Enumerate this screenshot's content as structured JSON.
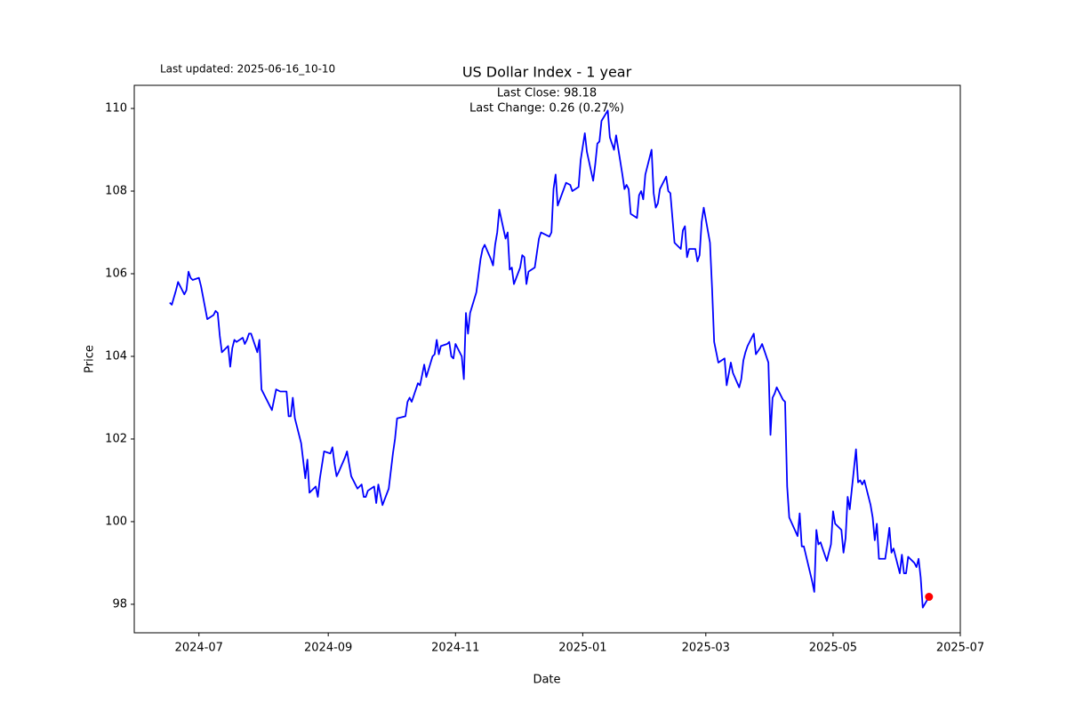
{
  "chart_data": {
    "type": "line",
    "title": "US Dollar Index - 1 year",
    "subtitle": "Last updated: 2025-06-16_10-10",
    "annotations": [
      "Last Close: 98.18",
      "Last Change: 0.26 (0.27%)"
    ],
    "xlabel": "Date",
    "ylabel": "Price",
    "xlim": [
      "2024-05-31",
      "2025-07-01"
    ],
    "xticks": [
      {
        "value": "2024-07-01",
        "label": "2024-07"
      },
      {
        "value": "2024-09-01",
        "label": "2024-09"
      },
      {
        "value": "2024-11-01",
        "label": "2024-11"
      },
      {
        "value": "2025-01-01",
        "label": "2025-01"
      },
      {
        "value": "2025-03-01",
        "label": "2025-03"
      },
      {
        "value": "2025-05-01",
        "label": "2025-05"
      },
      {
        "value": "2025-07-01",
        "label": "2025-07"
      }
    ],
    "ylim": [
      97.31,
      110.56
    ],
    "yticks": [
      98,
      100,
      102,
      104,
      106,
      108,
      110
    ],
    "grid": false,
    "series": [
      {
        "name": "Price",
        "color": "#0000ff",
        "x": [
          "2024-06-17",
          "2024-06-18",
          "2024-06-20",
          "2024-06-21",
          "2024-06-24",
          "2024-06-25",
          "2024-06-26",
          "2024-06-27",
          "2024-06-28",
          "2024-07-01",
          "2024-07-02",
          "2024-07-05",
          "2024-07-08",
          "2024-07-09",
          "2024-07-10",
          "2024-07-11",
          "2024-07-12",
          "2024-07-15",
          "2024-07-16",
          "2024-07-17",
          "2024-07-18",
          "2024-07-19",
          "2024-07-22",
          "2024-07-23",
          "2024-07-24",
          "2024-07-25",
          "2024-07-26",
          "2024-07-29",
          "2024-07-30",
          "2024-07-31",
          "2024-08-05",
          "2024-08-07",
          "2024-08-09",
          "2024-08-12",
          "2024-08-13",
          "2024-08-14",
          "2024-08-15",
          "2024-08-16",
          "2024-08-19",
          "2024-08-21",
          "2024-08-22",
          "2024-08-23",
          "2024-08-26",
          "2024-08-27",
          "2024-08-28",
          "2024-08-30",
          "2024-09-02",
          "2024-09-03",
          "2024-09-04",
          "2024-09-05",
          "2024-09-06",
          "2024-09-09",
          "2024-09-10",
          "2024-09-12",
          "2024-09-15",
          "2024-09-17",
          "2024-09-18",
          "2024-09-19",
          "2024-09-20",
          "2024-09-23",
          "2024-09-24",
          "2024-09-25",
          "2024-09-27",
          "2024-09-30",
          "2024-10-02",
          "2024-10-03",
          "2024-10-04",
          "2024-10-08",
          "2024-10-09",
          "2024-10-10",
          "2024-10-11",
          "2024-10-14",
          "2024-10-15",
          "2024-10-17",
          "2024-10-18",
          "2024-10-21",
          "2024-10-22",
          "2024-10-23",
          "2024-10-24",
          "2024-10-25",
          "2024-10-28",
          "2024-10-29",
          "2024-10-30",
          "2024-10-31",
          "2024-11-01",
          "2024-11-04",
          "2024-11-05",
          "2024-11-06",
          "2024-11-07",
          "2024-11-08",
          "2024-11-11",
          "2024-11-12",
          "2024-11-13",
          "2024-11-14",
          "2024-11-15",
          "2024-11-18",
          "2024-11-19",
          "2024-11-20",
          "2024-11-21",
          "2024-11-22",
          "2024-11-25",
          "2024-11-26",
          "2024-11-27",
          "2024-11-28",
          "2024-11-29",
          "2024-12-02",
          "2024-12-03",
          "2024-12-04",
          "2024-12-05",
          "2024-12-06",
          "2024-12-09",
          "2024-12-10",
          "2024-12-11",
          "2024-12-12",
          "2024-12-16",
          "2024-12-17",
          "2024-12-18",
          "2024-12-19",
          "2024-12-20",
          "2024-12-24",
          "2024-12-26",
          "2024-12-27",
          "2024-12-30",
          "2024-12-31",
          "2025-01-02",
          "2025-01-03",
          "2025-01-06",
          "2025-01-07",
          "2025-01-08",
          "2025-01-09",
          "2025-01-10",
          "2025-01-13",
          "2025-01-14",
          "2025-01-16",
          "2025-01-17",
          "2025-01-20",
          "2025-01-21",
          "2025-01-22",
          "2025-01-23",
          "2025-01-24",
          "2025-01-27",
          "2025-01-28",
          "2025-01-29",
          "2025-01-30",
          "2025-01-31",
          "2025-02-03",
          "2025-02-04",
          "2025-02-05",
          "2025-02-06",
          "2025-02-07",
          "2025-02-10",
          "2025-02-11",
          "2025-02-12",
          "2025-02-13",
          "2025-02-14",
          "2025-02-17",
          "2025-02-18",
          "2025-02-19",
          "2025-02-20",
          "2025-02-21",
          "2025-02-24",
          "2025-02-25",
          "2025-02-26",
          "2025-02-27",
          "2025-02-28",
          "2025-03-03",
          "2025-03-04",
          "2025-03-05",
          "2025-03-07",
          "2025-03-10",
          "2025-03-11",
          "2025-03-13",
          "2025-03-14",
          "2025-03-17",
          "2025-03-18",
          "2025-03-19",
          "2025-03-20",
          "2025-03-21",
          "2025-03-24",
          "2025-03-25",
          "2025-03-27",
          "2025-03-28",
          "2025-03-31",
          "2025-04-01",
          "2025-04-02",
          "2025-04-03",
          "2025-04-04",
          "2025-04-07",
          "2025-04-08",
          "2025-04-09",
          "2025-04-10",
          "2025-04-14",
          "2025-04-15",
          "2025-04-16",
          "2025-04-17",
          "2025-04-21",
          "2025-04-22",
          "2025-04-23",
          "2025-04-24",
          "2025-04-25",
          "2025-04-28",
          "2025-04-30",
          "2025-05-01",
          "2025-05-02",
          "2025-05-05",
          "2025-05-06",
          "2025-05-07",
          "2025-05-08",
          "2025-05-09",
          "2025-05-12",
          "2025-05-13",
          "2025-05-14",
          "2025-05-15",
          "2025-05-16",
          "2025-05-19",
          "2025-05-20",
          "2025-05-21",
          "2025-05-22",
          "2025-05-23",
          "2025-05-26",
          "2025-05-27",
          "2025-05-28",
          "2025-05-29",
          "2025-05-30",
          "2025-06-02",
          "2025-06-03",
          "2025-06-04",
          "2025-06-05",
          "2025-06-06",
          "2025-06-09",
          "2025-06-10",
          "2025-06-11",
          "2025-06-12",
          "2025-06-13",
          "2025-06-16"
        ],
        "values": [
          105.3,
          105.25,
          105.6,
          105.8,
          105.5,
          105.6,
          106.05,
          105.9,
          105.85,
          105.9,
          105.7,
          104.9,
          105.0,
          105.1,
          105.05,
          104.5,
          104.1,
          104.25,
          103.75,
          104.2,
          104.4,
          104.35,
          104.45,
          104.3,
          104.4,
          104.55,
          104.55,
          104.1,
          104.4,
          103.2,
          102.7,
          103.2,
          103.15,
          103.15,
          102.55,
          102.55,
          103.0,
          102.5,
          101.9,
          101.05,
          101.5,
          100.7,
          100.85,
          100.6,
          101.05,
          101.7,
          101.65,
          101.8,
          101.4,
          101.1,
          101.2,
          101.55,
          101.7,
          101.1,
          100.8,
          100.9,
          100.6,
          100.6,
          100.75,
          100.85,
          100.45,
          100.9,
          100.4,
          100.8,
          101.65,
          102.0,
          102.5,
          102.55,
          102.9,
          103.0,
          102.9,
          103.35,
          103.3,
          103.8,
          103.5,
          104.0,
          104.05,
          104.4,
          104.05,
          104.25,
          104.3,
          104.35,
          104.0,
          103.95,
          104.3,
          104.0,
          103.45,
          105.05,
          104.55,
          105.05,
          105.55,
          105.95,
          106.35,
          106.6,
          106.7,
          106.35,
          106.2,
          106.7,
          107.0,
          107.55,
          106.85,
          107.0,
          106.1,
          106.15,
          105.75,
          106.15,
          106.45,
          106.4,
          105.75,
          106.05,
          106.15,
          106.5,
          106.85,
          107.0,
          106.9,
          107.0,
          108.05,
          108.4,
          107.65,
          108.2,
          108.15,
          108.0,
          108.1,
          108.75,
          109.4,
          108.95,
          108.25,
          108.65,
          109.15,
          109.2,
          109.7,
          109.95,
          109.3,
          109.0,
          109.35,
          108.4,
          108.05,
          108.15,
          108.05,
          107.45,
          107.35,
          107.9,
          108.0,
          107.8,
          108.4,
          109.0,
          107.95,
          107.6,
          107.7,
          108.05,
          108.35,
          108.0,
          107.95,
          107.35,
          106.75,
          106.6,
          107.05,
          107.15,
          106.4,
          106.6,
          106.6,
          106.3,
          106.45,
          107.25,
          107.6,
          106.75,
          105.65,
          104.35,
          103.85,
          103.95,
          103.3,
          103.85,
          103.6,
          103.25,
          103.45,
          103.9,
          104.1,
          104.25,
          104.55,
          104.05,
          104.2,
          104.3,
          103.85,
          102.1,
          103.0,
          103.1,
          103.25,
          102.95,
          102.9,
          100.85,
          100.1,
          99.65,
          100.2,
          99.4,
          99.4,
          98.55,
          98.3,
          99.8,
          99.45,
          99.5,
          99.05,
          99.45,
          100.25,
          99.95,
          99.8,
          99.25,
          99.6,
          100.6,
          100.3,
          101.75,
          100.95,
          101.0,
          100.9,
          101.0,
          100.4,
          100.1,
          99.55,
          99.95,
          99.1,
          99.1,
          99.45,
          99.85,
          99.25,
          99.35,
          98.75,
          99.2,
          98.75,
          98.75,
          99.15,
          99.0,
          98.9,
          99.1,
          98.65,
          97.92,
          98.18
        ]
      }
    ],
    "last_point": {
      "x": "2025-06-16",
      "value": 98.18,
      "color": "#ff0000"
    }
  }
}
